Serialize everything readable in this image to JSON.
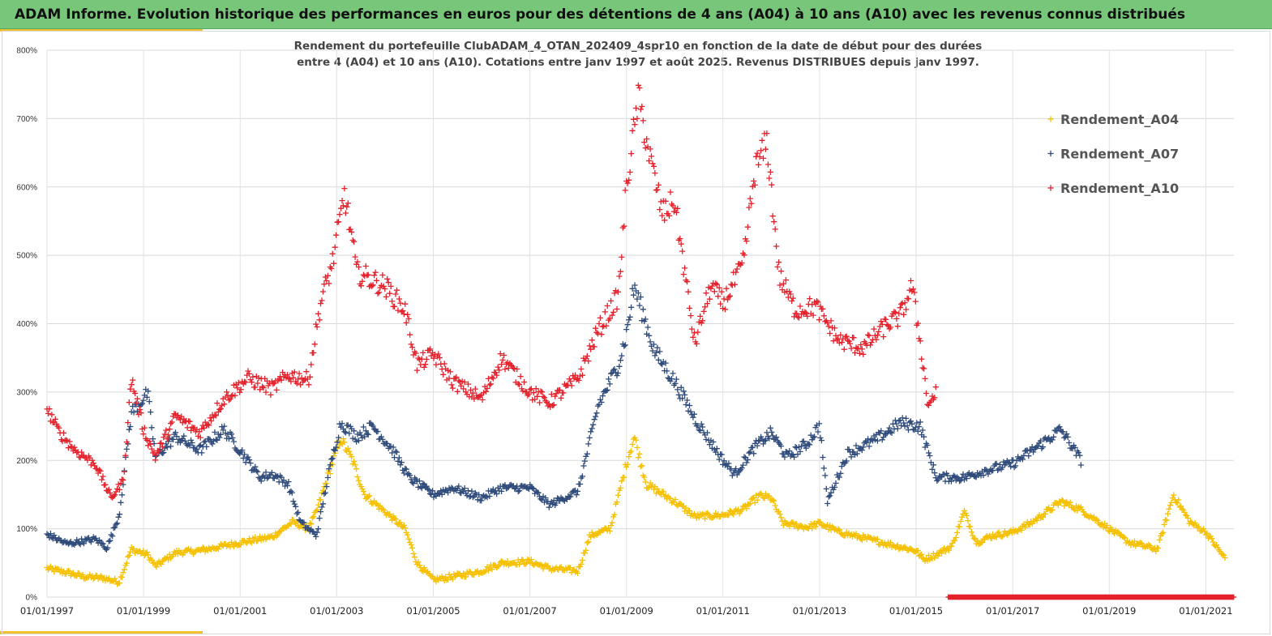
{
  "header": {
    "title": "ADAM Informe. Evolution historique des performances en euros pour des détentions de 4 ans (A04) à 10 ans (A10) avec les revenus connus distribués"
  },
  "chart_data": {
    "type": "scatter",
    "title_line1": "Rendement du portefeuille ClubADAM_4_OTAN_202409_4spr10  en fonction de la date de début pour des durées",
    "title_line2": "entre 4 (A04) et 10 ans (A10). Cotations entre janv 1997 et août 2025. Revenus DISTRIBUES depuis janv 1997.",
    "x_type": "date",
    "xlim": [
      "1997-01-01",
      "2021-08-01"
    ],
    "ylim": [
      0,
      800
    ],
    "y_unit": "%",
    "y_ticks": [
      "0%",
      "100%",
      "200%",
      "300%",
      "400%",
      "500%",
      "600%",
      "700%",
      "800%"
    ],
    "x_ticks": [
      "01/01/1997",
      "01/01/1999",
      "01/01/2001",
      "01/01/2003",
      "01/01/2005",
      "01/01/2007",
      "01/01/2009",
      "01/01/2011",
      "01/01/2013",
      "01/01/2015",
      "01/01/2017",
      "01/01/2019",
      "01/01/2021"
    ],
    "grid": true,
    "legend_position": "top-right",
    "marker": "+",
    "series": [
      {
        "name": "Rendement_A04",
        "color": "#f5c000",
        "date_range": [
          "1997-01-01",
          "2021-06-15"
        ],
        "points": [
          [
            "1997-01-01",
            42
          ],
          [
            "1997-06-01",
            36
          ],
          [
            "1997-10-01",
            30
          ],
          [
            "1998-03-01",
            28
          ],
          [
            "1998-07-01",
            22
          ],
          [
            "1998-10-01",
            70
          ],
          [
            "1999-02-01",
            62
          ],
          [
            "1999-04-01",
            45
          ],
          [
            "1999-09-01",
            65
          ],
          [
            "2000-03-01",
            68
          ],
          [
            "2000-09-01",
            75
          ],
          [
            "2001-03-01",
            82
          ],
          [
            "2001-09-01",
            88
          ],
          [
            "2002-02-01",
            110
          ],
          [
            "2002-06-01",
            100
          ],
          [
            "2002-08-01",
            125
          ],
          [
            "2002-11-01",
            180
          ],
          [
            "2003-02-01",
            232
          ],
          [
            "2003-05-01",
            200
          ],
          [
            "2003-08-01",
            150
          ],
          [
            "2004-01-01",
            125
          ],
          [
            "2004-06-01",
            100
          ],
          [
            "2004-09-01",
            50
          ],
          [
            "2005-01-01",
            25
          ],
          [
            "2005-06-01",
            30
          ],
          [
            "2006-01-01",
            38
          ],
          [
            "2006-06-01",
            50
          ],
          [
            "2007-01-01",
            52
          ],
          [
            "2007-06-01",
            42
          ],
          [
            "2008-01-01",
            38
          ],
          [
            "2008-04-01",
            90
          ],
          [
            "2008-09-01",
            100
          ],
          [
            "2009-01-01",
            195
          ],
          [
            "2009-03-01",
            235
          ],
          [
            "2009-06-01",
            165
          ],
          [
            "2010-01-01",
            140
          ],
          [
            "2010-06-01",
            118
          ],
          [
            "2011-01-01",
            120
          ],
          [
            "2011-06-01",
            128
          ],
          [
            "2011-10-01",
            148
          ],
          [
            "2012-01-01",
            145
          ],
          [
            "2012-04-01",
            108
          ],
          [
            "2012-10-01",
            102
          ],
          [
            "2013-01-01",
            108
          ],
          [
            "2013-06-01",
            95
          ],
          [
            "2014-01-01",
            85
          ],
          [
            "2014-06-01",
            78
          ],
          [
            "2015-01-01",
            68
          ],
          [
            "2015-03-01",
            55
          ],
          [
            "2015-06-01",
            62
          ],
          [
            "2015-10-01",
            75
          ],
          [
            "2016-01-01",
            125
          ],
          [
            "2016-04-01",
            80
          ],
          [
            "2016-08-01",
            90
          ],
          [
            "2017-01-01",
            95
          ],
          [
            "2017-06-01",
            110
          ],
          [
            "2018-01-01",
            140
          ],
          [
            "2018-06-01",
            128
          ],
          [
            "2019-01-01",
            100
          ],
          [
            "2019-06-01",
            80
          ],
          [
            "2020-01-01",
            70
          ],
          [
            "2020-05-01",
            150
          ],
          [
            "2020-09-01",
            110
          ],
          [
            "2021-01-01",
            95
          ],
          [
            "2021-06-01",
            55
          ]
        ]
      },
      {
        "name": "Rendement_A07",
        "color": "#2e4a7a",
        "date_range": [
          "1997-01-01",
          "2018-06-01"
        ],
        "points": [
          [
            "1997-01-01",
            92
          ],
          [
            "1997-06-01",
            78
          ],
          [
            "1998-01-01",
            85
          ],
          [
            "1998-04-01",
            72
          ],
          [
            "1998-07-01",
            120
          ],
          [
            "1998-10-01",
            270
          ],
          [
            "1999-02-01",
            298
          ],
          [
            "1999-04-01",
            205
          ],
          [
            "1999-09-01",
            235
          ],
          [
            "2000-03-01",
            215
          ],
          [
            "2000-09-01",
            245
          ],
          [
            "2001-01-01",
            215
          ],
          [
            "2001-06-01",
            175
          ],
          [
            "2001-09-01",
            180
          ],
          [
            "2002-01-01",
            165
          ],
          [
            "2002-04-01",
            110
          ],
          [
            "2002-08-01",
            90
          ],
          [
            "2002-11-01",
            180
          ],
          [
            "2003-02-01",
            255
          ],
          [
            "2003-06-01",
            235
          ],
          [
            "2003-10-01",
            250
          ],
          [
            "2004-03-01",
            215
          ],
          [
            "2004-07-01",
            175
          ],
          [
            "2005-01-01",
            150
          ],
          [
            "2005-06-01",
            160
          ],
          [
            "2006-01-01",
            145
          ],
          [
            "2006-06-01",
            160
          ],
          [
            "2007-01-01",
            160
          ],
          [
            "2007-06-01",
            135
          ],
          [
            "2008-01-01",
            155
          ],
          [
            "2008-06-01",
            280
          ],
          [
            "2008-11-01",
            340
          ],
          [
            "2009-01-01",
            385
          ],
          [
            "2009-03-01",
            455
          ],
          [
            "2009-08-01",
            360
          ],
          [
            "2010-01-01",
            315
          ],
          [
            "2010-06-01",
            262
          ],
          [
            "2011-01-01",
            200
          ],
          [
            "2011-04-01",
            180
          ],
          [
            "2011-09-01",
            220
          ],
          [
            "2012-01-01",
            240
          ],
          [
            "2012-05-01",
            205
          ],
          [
            "2012-10-01",
            225
          ],
          [
            "2013-01-01",
            252
          ],
          [
            "2013-03-01",
            140
          ],
          [
            "2013-08-01",
            210
          ],
          [
            "2014-03-01",
            230
          ],
          [
            "2014-09-01",
            255
          ],
          [
            "2015-02-01",
            250
          ],
          [
            "2015-06-01",
            175
          ],
          [
            "2016-01-01",
            175
          ],
          [
            "2016-06-01",
            185
          ],
          [
            "2017-01-01",
            195
          ],
          [
            "2017-06-01",
            215
          ],
          [
            "2018-01-01",
            245
          ],
          [
            "2018-06-01",
            200
          ]
        ]
      },
      {
        "name": "Rendement_A10",
        "color": "#e4202b",
        "date_range": [
          "1997-01-01",
          "2015-06-01"
        ],
        "points": [
          [
            "1997-01-01",
            275
          ],
          [
            "1997-04-01",
            242
          ],
          [
            "1997-08-01",
            215
          ],
          [
            "1998-01-01",
            195
          ],
          [
            "1998-05-01",
            145
          ],
          [
            "1998-08-01",
            170
          ],
          [
            "1998-10-01",
            320
          ],
          [
            "1999-01-01",
            245
          ],
          [
            "1999-04-01",
            205
          ],
          [
            "1999-09-01",
            265
          ],
          [
            "2000-03-01",
            240
          ],
          [
            "2000-09-01",
            290
          ],
          [
            "2001-03-01",
            320
          ],
          [
            "2001-09-01",
            305
          ],
          [
            "2002-01-01",
            325
          ],
          [
            "2002-06-01",
            318
          ],
          [
            "2002-09-01",
            430
          ],
          [
            "2002-12-01",
            490
          ],
          [
            "2003-03-01",
            590
          ],
          [
            "2003-05-01",
            520
          ],
          [
            "2003-06-01",
            475
          ],
          [
            "2004-01-01",
            455
          ],
          [
            "2004-06-01",
            420
          ],
          [
            "2004-09-01",
            340
          ],
          [
            "2005-01-01",
            355
          ],
          [
            "2005-06-01",
            315
          ],
          [
            "2006-01-01",
            290
          ],
          [
            "2006-06-01",
            350
          ],
          [
            "2007-01-01",
            300
          ],
          [
            "2007-06-01",
            285
          ],
          [
            "2008-01-01",
            320
          ],
          [
            "2008-06-01",
            390
          ],
          [
            "2008-11-01",
            440
          ],
          [
            "2009-01-01",
            600
          ],
          [
            "2009-04-01",
            730
          ],
          [
            "2009-07-01",
            640
          ],
          [
            "2009-10-01",
            560
          ],
          [
            "2010-01-01",
            580
          ],
          [
            "2010-06-01",
            370
          ],
          [
            "2010-10-01",
            455
          ],
          [
            "2011-01-01",
            430
          ],
          [
            "2011-06-01",
            485
          ],
          [
            "2011-09-01",
            625
          ],
          [
            "2011-12-01",
            665
          ],
          [
            "2012-03-01",
            470
          ],
          [
            "2012-07-01",
            420
          ],
          [
            "2012-12-01",
            425
          ],
          [
            "2013-06-01",
            375
          ],
          [
            "2013-12-01",
            365
          ],
          [
            "2014-06-01",
            400
          ],
          [
            "2014-09-01",
            410
          ],
          [
            "2014-12-01",
            455
          ],
          [
            "2015-02-01",
            375
          ],
          [
            "2015-04-01",
            280
          ],
          [
            "2015-06-01",
            300
          ]
        ]
      }
    ],
    "flat_band": {
      "from": "2015-09-01",
      "to": "2021-08-01",
      "value": 0,
      "color": "#e4202b"
    }
  }
}
